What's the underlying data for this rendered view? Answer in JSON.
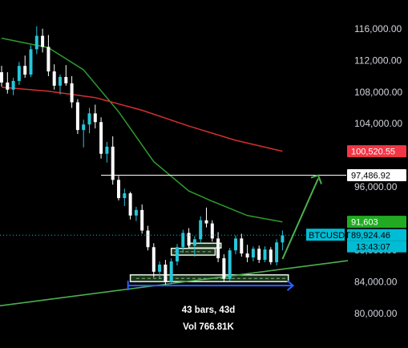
{
  "chart_data": {
    "type": "candlestick",
    "symbol": "BTCUSDT",
    "title": "",
    "xlabel": "",
    "ylabel": "",
    "ylim": [
      78500,
      117800
    ],
    "y_ticks": [
      "116,000.00",
      "112,000.00",
      "108,000.00",
      "104,000.00",
      "96,000.00",
      "88,000.00",
      "84,000.00",
      "80,000.00"
    ],
    "y_tick_values": [
      116000,
      112000,
      108000,
      104000,
      96000,
      88000,
      84000,
      80000
    ],
    "grid": false,
    "colors": {
      "background": "#000000",
      "up_candle": "#26c6da",
      "down_candle": "#ffffff",
      "ma_green": "#2e9a2e",
      "ma_red": "#d32f2f",
      "trendline": "#4caf50",
      "projection_arrow": "#4caf50",
      "range_arrow": "#2962ff",
      "price_tag_blue": "#00bcd4",
      "price_tag_red": "#f23645",
      "price_tag_green": "#22ab22"
    },
    "price_tags": [
      {
        "label": "100,520.55",
        "value": 100520.55,
        "color": "#f23645",
        "text_color": "#ffffff"
      },
      {
        "label": "97,486.92",
        "value": 97486.92,
        "color": "#ffffff",
        "text_color": "#000000"
      },
      {
        "label": "91,603",
        "value": 91603,
        "color": "#22ab22",
        "text_color": "#ffffff"
      },
      {
        "label": "89,924.46",
        "value": 89924.46,
        "color": "#00bcd4",
        "text_color": "#000000"
      }
    ],
    "countdown": "13:43:07",
    "target_level": 97486.92,
    "current_price": 89924.46,
    "measure": {
      "bars_label": "43 bars, 43d",
      "volume_label": "Vol 766.81K"
    },
    "candles": [
      [
        0,
        110500,
        111300,
        108700,
        109200
      ],
      [
        1,
        109200,
        110500,
        107800,
        108300
      ],
      [
        2,
        108300,
        109800,
        107600,
        109400
      ],
      [
        3,
        109400,
        111800,
        108900,
        111300
      ],
      [
        4,
        111300,
        112600,
        109800,
        110200
      ],
      [
        5,
        110200,
        113900,
        109900,
        113400
      ],
      [
        6,
        113400,
        116300,
        112800,
        115100
      ],
      [
        7,
        115100,
        116000,
        113000,
        113700
      ],
      [
        8,
        113700,
        115200,
        110000,
        110600
      ],
      [
        9,
        110600,
        111500,
        108300,
        108800
      ],
      [
        10,
        108800,
        110200,
        107700,
        109900
      ],
      [
        11,
        109900,
        111400,
        108800,
        109100
      ],
      [
        12,
        109100,
        110000,
        106000,
        106700
      ],
      [
        13,
        106700,
        107100,
        102700,
        103200
      ],
      [
        14,
        103200,
        104500,
        101000,
        103900
      ],
      [
        15,
        103900,
        106000,
        102800,
        105300
      ],
      [
        16,
        105300,
        106400,
        103400,
        104200
      ],
      [
        17,
        104200,
        104800,
        99600,
        100200
      ],
      [
        18,
        100200,
        101700,
        99100,
        101100
      ],
      [
        19,
        101100,
        102400,
        96300,
        96900
      ],
      [
        20,
        96900,
        97400,
        94300,
        94600
      ],
      [
        21,
        94600,
        95800,
        93600,
        95200
      ],
      [
        22,
        95200,
        95400,
        91900,
        92400
      ],
      [
        23,
        92400,
        93500,
        91700,
        93100
      ],
      [
        24,
        93100,
        93800,
        90100,
        90500
      ],
      [
        25,
        90500,
        91100,
        88000,
        88400
      ],
      [
        26,
        88400,
        88900,
        84600,
        85300
      ],
      [
        27,
        85300,
        86600,
        84400,
        86200
      ],
      [
        28,
        86200,
        86800,
        83500,
        84000
      ],
      [
        29,
        84000,
        87000,
        83800,
        86600
      ],
      [
        30,
        86600,
        88800,
        86100,
        88400
      ],
      [
        31,
        88400,
        90600,
        87700,
        90200
      ],
      [
        32,
        90200,
        90800,
        88300,
        88600
      ],
      [
        33,
        88600,
        89800,
        87200,
        89400
      ],
      [
        34,
        89400,
        92300,
        88900,
        91800
      ],
      [
        35,
        91800,
        93400,
        90900,
        91400
      ],
      [
        36,
        91400,
        91800,
        89100,
        89500
      ],
      [
        37,
        89500,
        90300,
        86500,
        87000
      ],
      [
        38,
        87000,
        87500,
        84000,
        84400
      ],
      [
        39,
        84400,
        88300,
        84100,
        88000
      ],
      [
        40,
        88000,
        89900,
        87500,
        89500
      ],
      [
        41,
        89500,
        90100,
        87200,
        87600
      ],
      [
        42,
        87600,
        88700,
        86500,
        87100
      ],
      [
        43,
        87100,
        88500,
        86600,
        88200
      ],
      [
        44,
        88200,
        88600,
        86400,
        86800
      ],
      [
        45,
        86800,
        88500,
        86500,
        88100
      ],
      [
        46,
        88100,
        88400,
        86200,
        86500
      ],
      [
        47,
        86500,
        89400,
        86100,
        89000
      ],
      [
        48,
        89000,
        90500,
        88000,
        89900
      ]
    ],
    "ma_green": [
      [
        0,
        114800
      ],
      [
        8,
        113600
      ],
      [
        14,
        110800
      ],
      [
        20,
        105500
      ],
      [
        26,
        99200
      ],
      [
        32,
        95500
      ],
      [
        36,
        94200
      ],
      [
        42,
        92400
      ],
      [
        48,
        91600
      ]
    ],
    "ma_red": [
      [
        0,
        108600
      ],
      [
        8,
        108100
      ],
      [
        16,
        107300
      ],
      [
        24,
        105700
      ],
      [
        32,
        103700
      ],
      [
        40,
        101900
      ],
      [
        48,
        100520
      ]
    ]
  }
}
